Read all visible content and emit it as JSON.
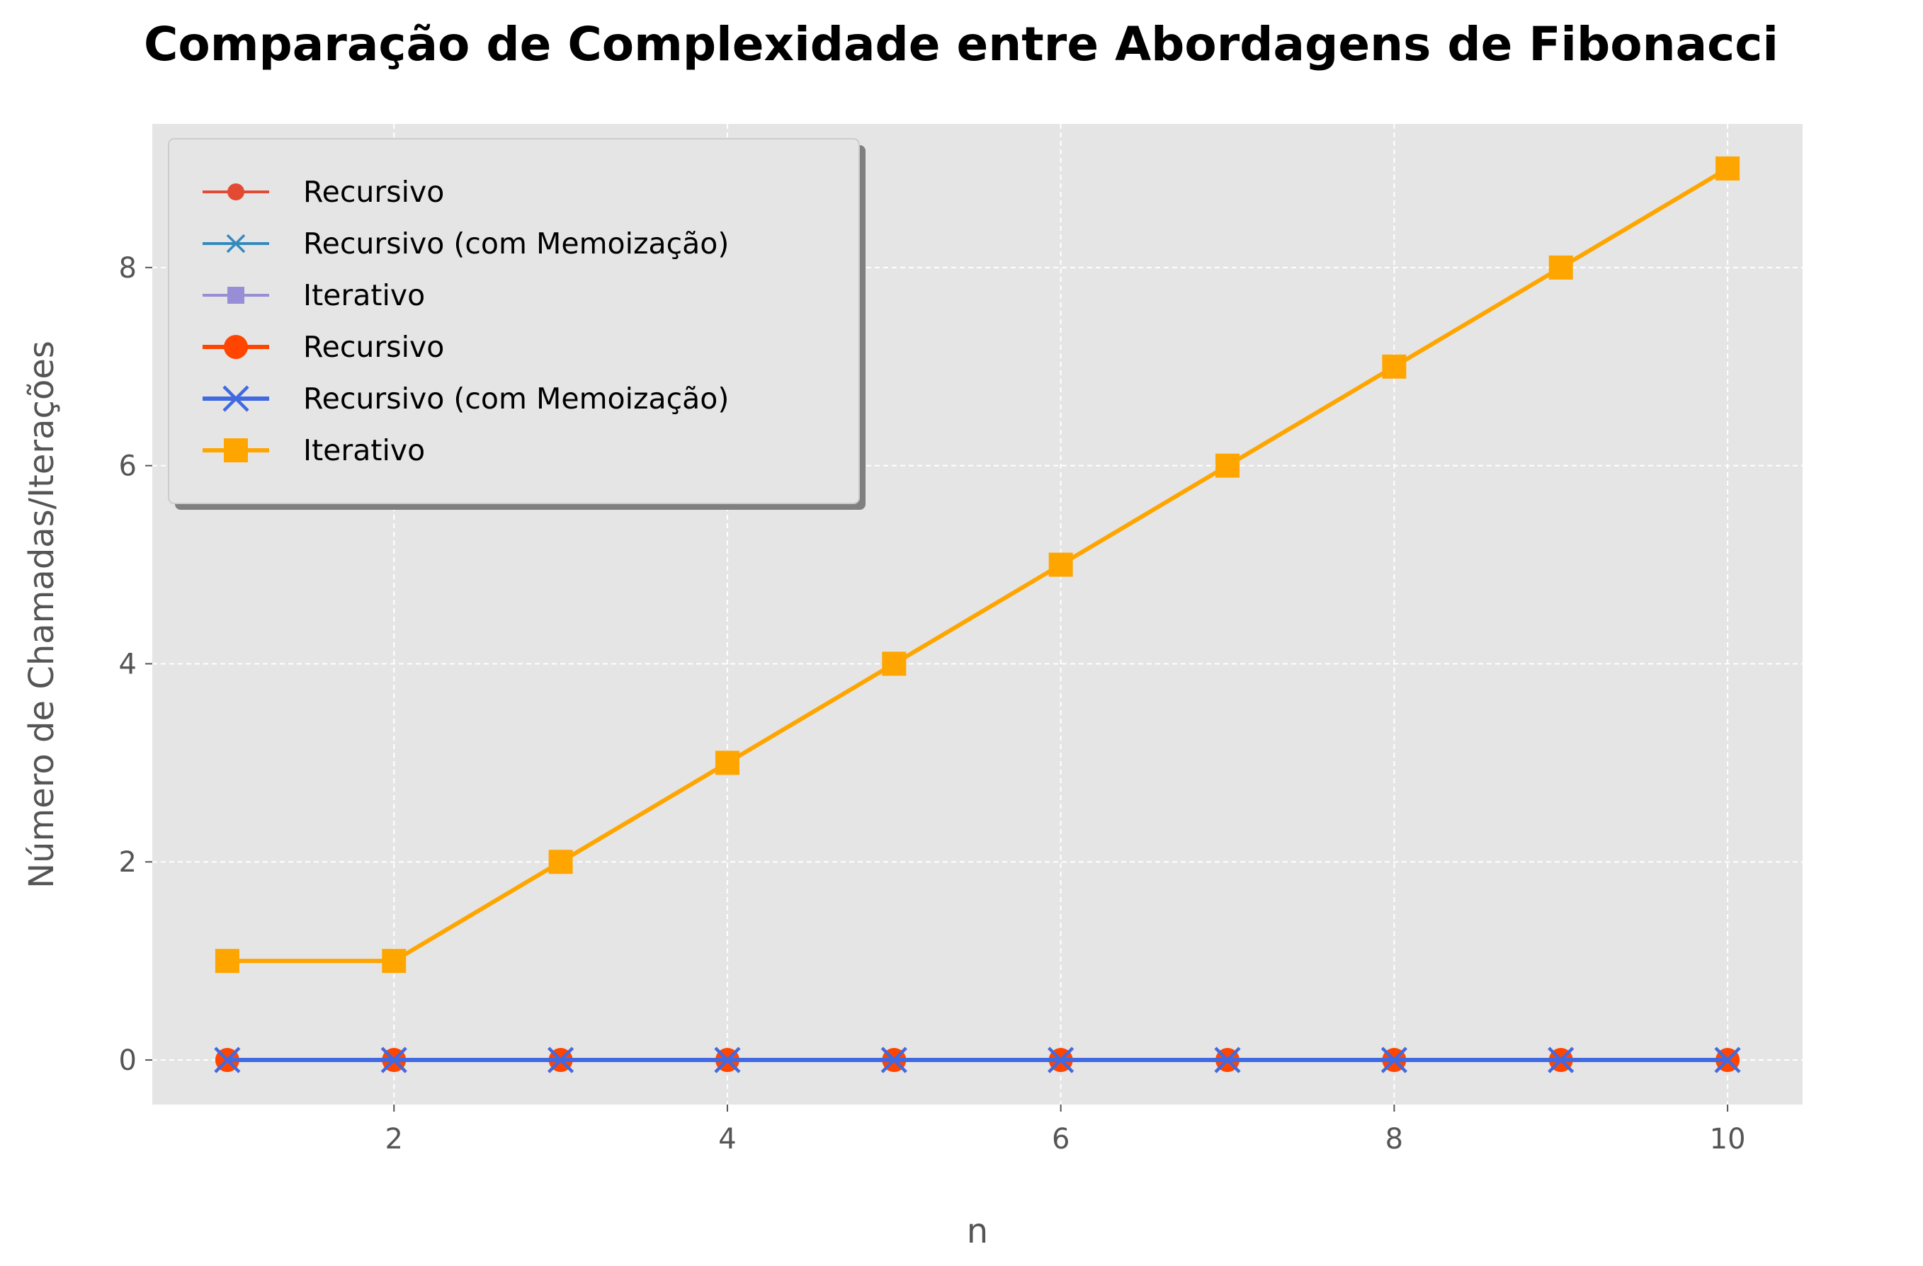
{
  "chart_data": {
    "type": "line",
    "title": "Comparação de Complexidade entre Abordagens de Fibonacci",
    "xlabel": "n",
    "ylabel": "Número de Chamadas/Iterações",
    "x": [
      1,
      2,
      3,
      4,
      5,
      6,
      7,
      8,
      9,
      10
    ],
    "xlim": [
      0.55,
      10.45
    ],
    "ylim": [
      -0.45,
      9.45
    ],
    "xticks": [
      2,
      4,
      6,
      8,
      10
    ],
    "yticks": [
      0,
      2,
      4,
      6,
      8
    ],
    "grid": true,
    "legend_position": "top-left",
    "series": [
      {
        "name": "Recursivo",
        "values": [
          0,
          0,
          0,
          0,
          0,
          0,
          0,
          0,
          0,
          0
        ],
        "color": "#e24a33",
        "marker": "circle",
        "style": "thin"
      },
      {
        "name": "Recursivo (com Memoização)",
        "values": [
          0,
          0,
          0,
          0,
          0,
          0,
          0,
          0,
          0,
          0
        ],
        "color": "#348abd",
        "marker": "x",
        "style": "thin"
      },
      {
        "name": "Iterativo",
        "values": [
          0,
          0,
          0,
          0,
          0,
          0,
          0,
          0,
          0,
          0
        ],
        "color": "#988ed5",
        "marker": "square",
        "style": "thin"
      },
      {
        "name": "Recursivo",
        "values": [
          0,
          0,
          0,
          0,
          0,
          0,
          0,
          0,
          0,
          0
        ],
        "color": "#ff4500",
        "marker": "circle",
        "style": "thick"
      },
      {
        "name": "Recursivo (com Memoização)",
        "values": [
          0,
          0,
          0,
          0,
          0,
          0,
          0,
          0,
          0,
          0
        ],
        "color": "#4169e1",
        "marker": "x",
        "style": "thick"
      },
      {
        "name": "Iterativo",
        "values": [
          1,
          1,
          2,
          3,
          4,
          5,
          6,
          7,
          8,
          9
        ],
        "color": "#ffa500",
        "marker": "square",
        "style": "thick"
      }
    ]
  }
}
